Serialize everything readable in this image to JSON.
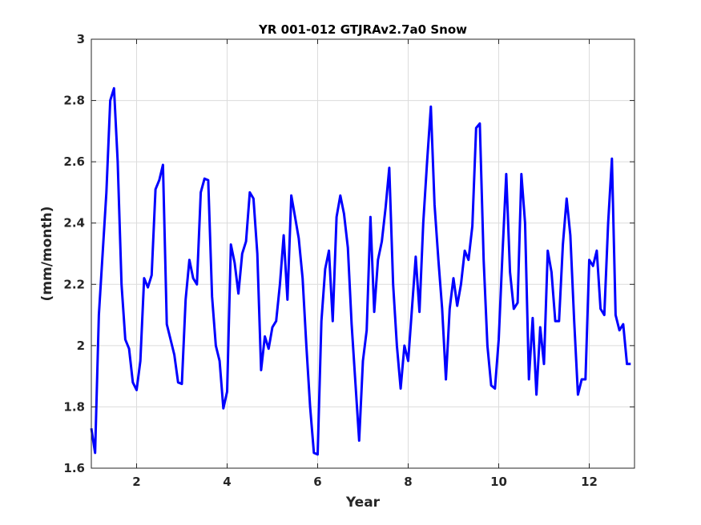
{
  "chart_data": {
    "type": "line",
    "title": "YR 001-012 GTJRAv2.7a0 Snow",
    "xlabel": "Year",
    "ylabel": "(mm/month)",
    "xlim": [
      1,
      13
    ],
    "ylim": [
      1.6,
      3.0
    ],
    "xticks": [
      2,
      4,
      6,
      8,
      10,
      12
    ],
    "yticks": [
      1.6,
      1.8,
      2.0,
      2.2,
      2.4,
      2.6,
      2.8,
      3.0
    ],
    "ytick_labels": [
      "1.6",
      "1.8",
      "2",
      "2.2",
      "2.4",
      "2.6",
      "2.8",
      "3"
    ],
    "grid": true,
    "series": [
      {
        "color": "#0000ff",
        "x": [
          1.0,
          1.083,
          1.167,
          1.25,
          1.333,
          1.417,
          1.5,
          1.583,
          1.667,
          1.75,
          1.833,
          1.917,
          2.0,
          2.083,
          2.167,
          2.25,
          2.333,
          2.417,
          2.5,
          2.583,
          2.667,
          2.75,
          2.833,
          2.917,
          3.0,
          3.083,
          3.167,
          3.25,
          3.333,
          3.417,
          3.5,
          3.583,
          3.667,
          3.75,
          3.833,
          3.917,
          4.0,
          4.083,
          4.167,
          4.25,
          4.333,
          4.417,
          4.5,
          4.583,
          4.667,
          4.75,
          4.833,
          4.917,
          5.0,
          5.083,
          5.167,
          5.25,
          5.333,
          5.417,
          5.5,
          5.583,
          5.667,
          5.75,
          5.833,
          5.917,
          6.0,
          6.083,
          6.167,
          6.25,
          6.333,
          6.417,
          6.5,
          6.583,
          6.667,
          6.75,
          6.833,
          6.917,
          7.0,
          7.083,
          7.167,
          7.25,
          7.333,
          7.417,
          7.5,
          7.583,
          7.667,
          7.75,
          7.833,
          7.917,
          8.0,
          8.083,
          8.167,
          8.25,
          8.333,
          8.417,
          8.5,
          8.583,
          8.667,
          8.75,
          8.833,
          8.917,
          9.0,
          9.083,
          9.167,
          9.25,
          9.333,
          9.417,
          9.5,
          9.583,
          9.667,
          9.75,
          9.833,
          9.917,
          10.0,
          10.083,
          10.167,
          10.25,
          10.333,
          10.417,
          10.5,
          10.583,
          10.667,
          10.75,
          10.833,
          10.917,
          11.0,
          11.083,
          11.167,
          11.25,
          11.333,
          11.417,
          11.5,
          11.583,
          11.667,
          11.75,
          11.833,
          11.917,
          12.0,
          12.083,
          12.167,
          12.25,
          12.333,
          12.417,
          12.5,
          12.583,
          12.667,
          12.75,
          12.833,
          12.917
        ],
        "y": [
          1.73,
          1.65,
          2.1,
          2.3,
          2.5,
          2.8,
          2.84,
          2.6,
          2.2,
          2.02,
          1.99,
          1.88,
          1.855,
          1.95,
          2.22,
          2.19,
          2.23,
          2.51,
          2.54,
          2.59,
          2.07,
          2.02,
          1.97,
          1.88,
          1.875,
          2.15,
          2.28,
          2.22,
          2.2,
          2.5,
          2.545,
          2.54,
          2.16,
          2.0,
          1.95,
          1.795,
          1.85,
          2.33,
          2.27,
          2.17,
          2.3,
          2.34,
          2.5,
          2.48,
          2.3,
          1.92,
          2.03,
          1.99,
          2.06,
          2.08,
          2.2,
          2.36,
          2.15,
          2.49,
          2.42,
          2.35,
          2.22,
          2.0,
          1.8,
          1.65,
          1.645,
          2.08,
          2.25,
          2.31,
          2.08,
          2.42,
          2.49,
          2.43,
          2.32,
          2.07,
          1.88,
          1.69,
          1.95,
          2.05,
          2.42,
          2.11,
          2.28,
          2.34,
          2.45,
          2.58,
          2.2,
          2.0,
          1.86,
          2.0,
          1.95,
          2.12,
          2.29,
          2.11,
          2.4,
          2.6,
          2.78,
          2.46,
          2.28,
          2.12,
          1.89,
          2.12,
          2.22,
          2.13,
          2.2,
          2.31,
          2.28,
          2.39,
          2.71,
          2.725,
          2.28,
          2.0,
          1.87,
          1.86,
          2.02,
          2.3,
          2.56,
          2.24,
          2.12,
          2.14,
          2.56,
          2.4,
          1.89,
          2.09,
          1.84,
          2.06,
          1.94,
          2.31,
          2.24,
          2.08,
          2.08,
          2.33,
          2.48,
          2.36,
          2.08,
          1.84,
          1.89,
          1.89,
          2.28,
          2.26,
          2.31,
          2.12,
          2.1,
          2.4,
          2.61,
          2.1,
          2.05,
          2.07,
          1.94,
          1.94
        ]
      }
    ]
  }
}
